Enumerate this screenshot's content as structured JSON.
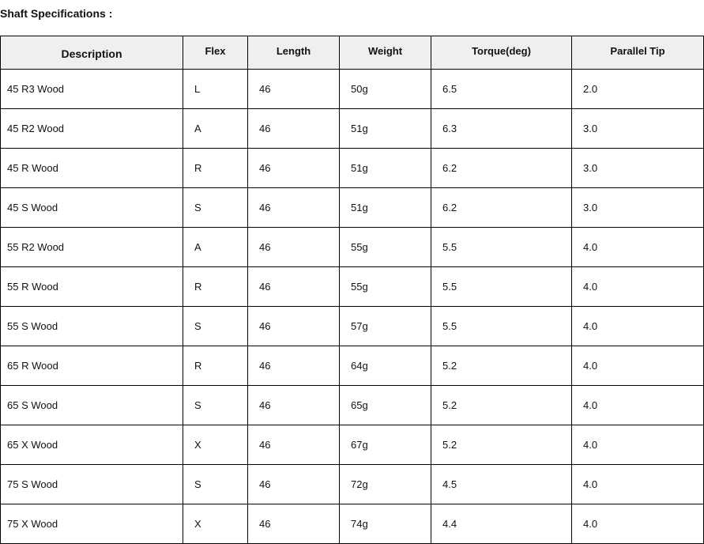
{
  "title": "Shaft Specifications :",
  "table": {
    "headers": [
      "Description",
      "Flex",
      "Length",
      "Weight",
      "Torque(deg)",
      "Parallel Tip"
    ],
    "rows": [
      [
        "45 R3 Wood",
        "L",
        "46",
        "50g",
        "6.5",
        "2.0"
      ],
      [
        "45 R2 Wood",
        "A",
        "46",
        "51g",
        "6.3",
        "3.0"
      ],
      [
        "45 R Wood",
        "R",
        "46",
        "51g",
        "6.2",
        "3.0"
      ],
      [
        "45 S Wood",
        "S",
        "46",
        "51g",
        "6.2",
        "3.0"
      ],
      [
        "55 R2 Wood",
        "A",
        "46",
        "55g",
        "5.5",
        "4.0"
      ],
      [
        "55 R Wood",
        "R",
        "46",
        "55g",
        "5.5",
        "4.0"
      ],
      [
        "55 S Wood",
        "S",
        "46",
        "57g",
        "5.5",
        "4.0"
      ],
      [
        "65 R Wood",
        "R",
        "46",
        "64g",
        "5.2",
        "4.0"
      ],
      [
        "65 S Wood",
        "S",
        "46",
        "65g",
        "5.2",
        "4.0"
      ],
      [
        "65 X Wood",
        "X",
        "46",
        "67g",
        "5.2",
        "4.0"
      ],
      [
        "75 S Wood",
        "S",
        "46",
        "72g",
        "4.5",
        "4.0"
      ],
      [
        "75 X Wood",
        "X",
        "46",
        "74g",
        "4.4",
        "4.0"
      ]
    ]
  }
}
